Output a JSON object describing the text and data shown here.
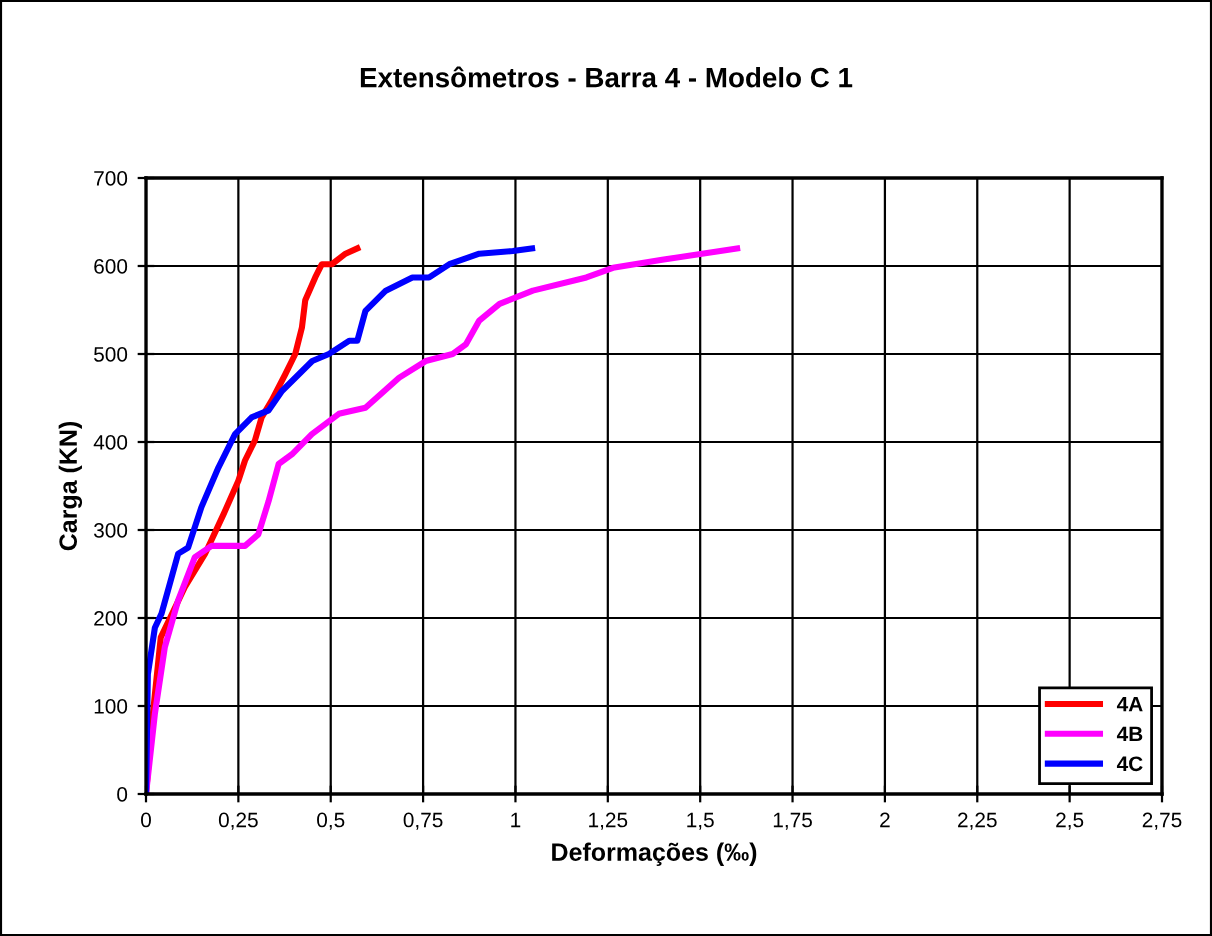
{
  "chart_data": {
    "type": "line",
    "title": "Extensômetros - Barra 4 - Modelo C 1",
    "xlabel": "Deformações (‰)",
    "ylabel": "Carga (KN)",
    "xlim": [
      0,
      2.75
    ],
    "ylim": [
      0,
      700
    ],
    "xticks": [
      0,
      {
        "value": 0.25,
        "label": "0,25"
      },
      {
        "value": 0.5,
        "label": "0,5"
      },
      {
        "value": 0.75,
        "label": "0,75"
      },
      1,
      {
        "value": 1.25,
        "label": "1,25"
      },
      {
        "value": 1.5,
        "label": "1,5"
      },
      {
        "value": 1.75,
        "label": "1,75"
      },
      2,
      {
        "value": 2.25,
        "label": "2,25"
      },
      {
        "value": 2.5,
        "label": "2,5"
      },
      {
        "value": 2.75,
        "label": "2,75"
      }
    ],
    "yticks": [
      0,
      100,
      200,
      300,
      400,
      500,
      600,
      700
    ],
    "grid": true,
    "legend": "bottom right",
    "marker": "none",
    "line_style": "solid",
    "series": [
      {
        "name": "4A",
        "color": "#ff0000",
        "x": [
          0,
          0.015,
          0.04,
          0.105,
          0.16,
          0.21,
          0.25,
          0.268,
          0.295,
          0.313,
          0.34,
          0.377,
          0.404,
          0.422,
          0.431,
          0.458,
          0.476,
          0.503,
          0.54,
          0.572
        ],
        "values": [
          0,
          76,
          178,
          235,
          273,
          318,
          356,
          379,
          402,
          428,
          447,
          477,
          500,
          530,
          561,
          587,
          602,
          602,
          614,
          620
        ]
      },
      {
        "name": "4B",
        "color": "#ff00ff",
        "x": [
          0,
          0.024,
          0.051,
          0.087,
          0.132,
          0.178,
          0.268,
          0.304,
          0.332,
          0.359,
          0.395,
          0.449,
          0.522,
          0.594,
          0.685,
          0.757,
          0.83,
          0.866,
          0.902,
          0.957,
          1.047,
          1.192,
          1.264,
          1.397,
          1.6
        ],
        "values": [
          0,
          91,
          167,
          220,
          269,
          282,
          282,
          295,
          333,
          375,
          386,
          409,
          432,
          439,
          473,
          492,
          500,
          511,
          538,
          557,
          572,
          587,
          598,
          607,
          620
        ]
      },
      {
        "name": "4C",
        "color": "#0000ff",
        "x": [
          0,
          0.005,
          0.024,
          0.042,
          0.087,
          0.114,
          0.15,
          0.196,
          0.241,
          0.286,
          0.332,
          0.368,
          0.45,
          0.495,
          0.55,
          0.572,
          0.594,
          0.649,
          0.721,
          0.766,
          0.821,
          0.902,
          0.993,
          1.045
        ],
        "values": [
          0,
          136,
          189,
          205,
          273,
          280,
          326,
          371,
          409,
          428,
          436,
          458,
          492,
          500,
          515,
          515,
          549,
          572,
          587,
          587,
          602,
          614,
          617,
          620
        ]
      }
    ]
  }
}
